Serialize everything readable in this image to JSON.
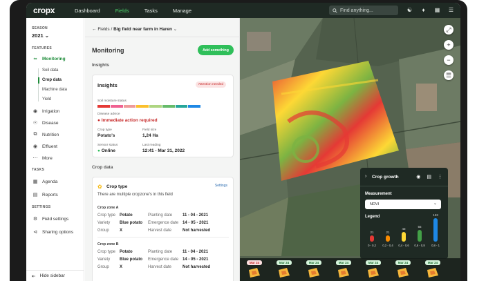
{
  "app": {
    "logo": "cropx"
  },
  "topnav": {
    "items": [
      "Dashboard",
      "Fields",
      "Tasks",
      "Manage"
    ],
    "active": "Fields"
  },
  "search": {
    "placeholder": "Find anything..."
  },
  "sidebar": {
    "season_label": "SEASON",
    "season_value": "2021",
    "features_label": "FEATURES",
    "monitoring": "Monitoring",
    "sub_items": [
      "Soil data",
      "Crop data",
      "Machine data",
      "Yield"
    ],
    "active_sub": "Crop data",
    "feature_items": [
      "Irrigation",
      "Disease",
      "Nutrition",
      "Effluent",
      "More"
    ],
    "tasks_label": "TASKS",
    "task_items": [
      "Agenda",
      "Reports"
    ],
    "settings_label": "SETTINGS",
    "settings_items": [
      "Field settings",
      "Sharing options"
    ],
    "hide": "Hide sidebar"
  },
  "breadcrumb": {
    "root": "Fields",
    "sep": "/",
    "current": "Big field near farm in Haren"
  },
  "monitoring": {
    "title": "Monitoring",
    "add_button": "Add something"
  },
  "insights": {
    "section_title": "Insights",
    "card_title": "Insights",
    "badge": "Attention needed",
    "soil_moisture_label": "Soil moisture status",
    "soil_moisture_colors": [
      "#e53935",
      "#f06292",
      "#ef9a9a",
      "#fbc02d",
      "#aed581",
      "#66bb6a",
      "#26a69a",
      "#1e88e5"
    ],
    "disease_label": "Disease advice",
    "disease_value": "Immediate action required",
    "crop_type_label": "Crop type",
    "crop_type_value": "Potato's",
    "field_size_label": "Field size",
    "field_size_value": "1,24 Ha",
    "sensor_label": "Sensor status",
    "sensor_value": "Online",
    "last_reading_label": "Last reading",
    "last_reading_value": "12:41 - Mar 31, 2022"
  },
  "crop_data": {
    "section_title": "Crop data",
    "card_title": "Crop type",
    "link": "Settings",
    "note": "There are multiple cropzone's in this field",
    "zones": [
      {
        "name": "Crop zone A",
        "crop_type": "Potato",
        "variety": "Blue potato",
        "group": "X",
        "planting_date": "11 - 04 - 2021",
        "emergence_date": "14 - 05 - 2021",
        "harvest_date": "Not harvested"
      },
      {
        "name": "Crop zone B",
        "crop_type": "Potato",
        "variety": "Blue potato",
        "group": "X",
        "planting_date": "11 - 04 - 2021",
        "emergence_date": "14 - 05 - 2021",
        "harvest_date": "Not harvested"
      }
    ],
    "keys": {
      "crop_type": "Crop type",
      "variety": "Variety",
      "group": "Group",
      "planting_date": "Planting date",
      "emergence_date": "Emergence date",
      "harvest_date": "Harvest date"
    }
  },
  "growth_panel": {
    "title": "Crop growth",
    "measurement_label": "Measurement",
    "measurement_value": "NDVI",
    "legend_label": "Legend",
    "legend": [
      {
        "range": "0 - 0,2",
        "count": "21",
        "color": "#e53935"
      },
      {
        "range": "0,2 - 0,4",
        "count": "21",
        "color": "#fb8c00"
      },
      {
        "range": "0,4 - 0,6",
        "count": "43",
        "color": "#fdd835"
      },
      {
        "range": "0,6 - 0,8",
        "count": "55",
        "color": "#43a047"
      },
      {
        "range": "0,8 - 1",
        "count": "123",
        "color": "#1e88e5"
      }
    ]
  },
  "timeline": [
    {
      "date": "Mar 24",
      "status": "red"
    },
    {
      "date": "Mar 24",
      "status": "green"
    },
    {
      "date": "Mar 24",
      "status": "green"
    },
    {
      "date": "Mar 24",
      "status": "green"
    },
    {
      "date": "Mar 24",
      "status": "green"
    },
    {
      "date": "Mar 24",
      "status": "green"
    },
    {
      "date": "Mar 24",
      "status": "green"
    }
  ]
}
